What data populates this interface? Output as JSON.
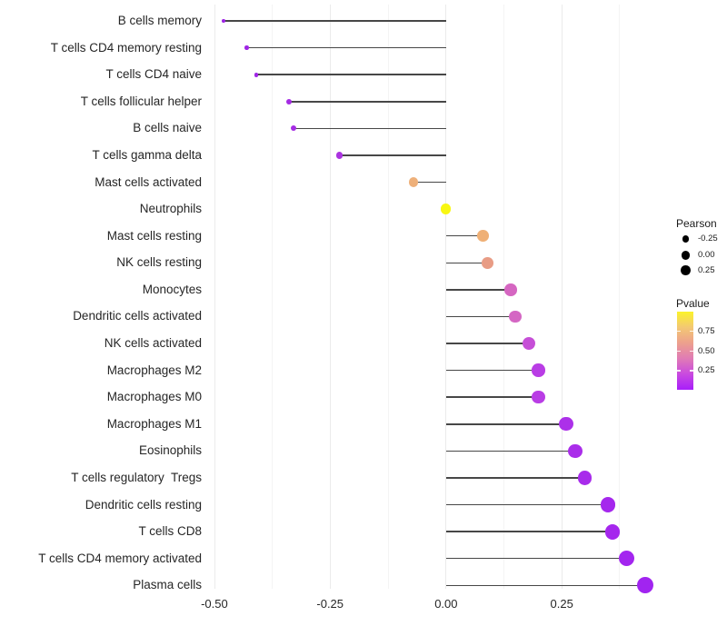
{
  "chart_data": {
    "type": "lollipop",
    "orientation": "horizontal",
    "x_axis": {
      "tick_labels": [
        "-0.50",
        "-0.25",
        "0.00",
        "0.25"
      ],
      "tick_values": [
        -0.5,
        -0.25,
        0,
        0.25
      ],
      "minor_grid_values": [
        -0.375,
        -0.125,
        0.125,
        0.375
      ],
      "xlim": [
        -0.53,
        0.47
      ]
    },
    "grid": "vertical-only",
    "baseline": 0,
    "size_encodes": "Pearson",
    "color_encodes": "Pvalue",
    "points": [
      {
        "label": "B cells memory",
        "pearson": -0.48,
        "pvalue_est": 0.03,
        "color": "#9D23E4"
      },
      {
        "label": "T cells CD4 memory resting",
        "pearson": -0.43,
        "pvalue_est": 0.03,
        "color": "#9F25E5"
      },
      {
        "label": "T cells CD4 naive",
        "pearson": -0.41,
        "pvalue_est": 0.04,
        "color": "#A026E6"
      },
      {
        "label": "T cells follicular helper",
        "pearson": -0.34,
        "pvalue_est": 0.05,
        "color": "#A42BE3"
      },
      {
        "label": "B cells naive",
        "pearson": -0.33,
        "pvalue_est": 0.06,
        "color": "#A52CE4"
      },
      {
        "label": "T cells gamma delta",
        "pearson": -0.23,
        "pvalue_est": 0.09,
        "color": "#AB34E0"
      },
      {
        "label": "Mast cells activated",
        "pearson": -0.07,
        "pvalue_est": 0.55,
        "color": "#EEB07A"
      },
      {
        "label": "Neutrophils",
        "pearson": 0.0,
        "pvalue_est": 0.93,
        "color": "#F8F712"
      },
      {
        "label": "Mast cells resting",
        "pearson": 0.08,
        "pvalue_est": 0.56,
        "color": "#EFB076"
      },
      {
        "label": "NK cells resting",
        "pearson": 0.09,
        "pvalue_est": 0.47,
        "color": "#E89C85"
      },
      {
        "label": "Monocytes",
        "pearson": 0.14,
        "pvalue_est": 0.28,
        "color": "#D566C1"
      },
      {
        "label": "Dendritic cells activated",
        "pearson": 0.15,
        "pvalue_est": 0.28,
        "color": "#D466C3"
      },
      {
        "label": "NK cells activated",
        "pearson": 0.18,
        "pvalue_est": 0.19,
        "color": "#C64FD7"
      },
      {
        "label": "Macrophages M2",
        "pearson": 0.2,
        "pvalue_est": 0.12,
        "color": "#B93DE5"
      },
      {
        "label": "Macrophages M0",
        "pearson": 0.2,
        "pvalue_est": 0.12,
        "color": "#B93DE5"
      },
      {
        "label": "Macrophages M1",
        "pearson": 0.26,
        "pvalue_est": 0.07,
        "color": "#AC30E9"
      },
      {
        "label": "Eosinophils",
        "pearson": 0.28,
        "pvalue_est": 0.06,
        "color": "#AA2DEA"
      },
      {
        "label": "T cells regulatory  Tregs",
        "pearson": 0.3,
        "pvalue_est": 0.05,
        "color": "#A82BEB"
      },
      {
        "label": "Dendritic cells resting",
        "pearson": 0.35,
        "pvalue_est": 0.03,
        "color": "#A527ED"
      },
      {
        "label": "T cells CD8",
        "pearson": 0.36,
        "pvalue_est": 0.03,
        "color": "#A527ED"
      },
      {
        "label": "T cells CD4 memory activated",
        "pearson": 0.39,
        "pvalue_est": 0.02,
        "color": "#A325EF"
      },
      {
        "label": "Plasma cells",
        "pearson": 0.43,
        "pvalue_est": 0.02,
        "color": "#A124F0"
      }
    ]
  },
  "legends": {
    "pearson": {
      "title": "Pearson",
      "items": [
        {
          "label": "-0.25",
          "value": -0.25
        },
        {
          "label": "0.00",
          "value": 0.0
        },
        {
          "label": "0.25",
          "value": 0.25
        }
      ]
    },
    "pvalue": {
      "title": "Pvalue",
      "tick_labels": [
        "0.75",
        "0.50",
        "0.25"
      ],
      "gradient_top_to_bottom": [
        "#FBF32A",
        "#F3C873",
        "#EDA08D",
        "#E07BB5",
        "#C94AE0",
        "#A81EFA"
      ]
    }
  },
  "colors": {
    "background": "#FFFFFF",
    "stem": "#474747",
    "grid_major": "#EBEBEB",
    "grid_minor": "#F4F4F4",
    "axis_text": "#262626",
    "legend_dot": "#000000"
  }
}
